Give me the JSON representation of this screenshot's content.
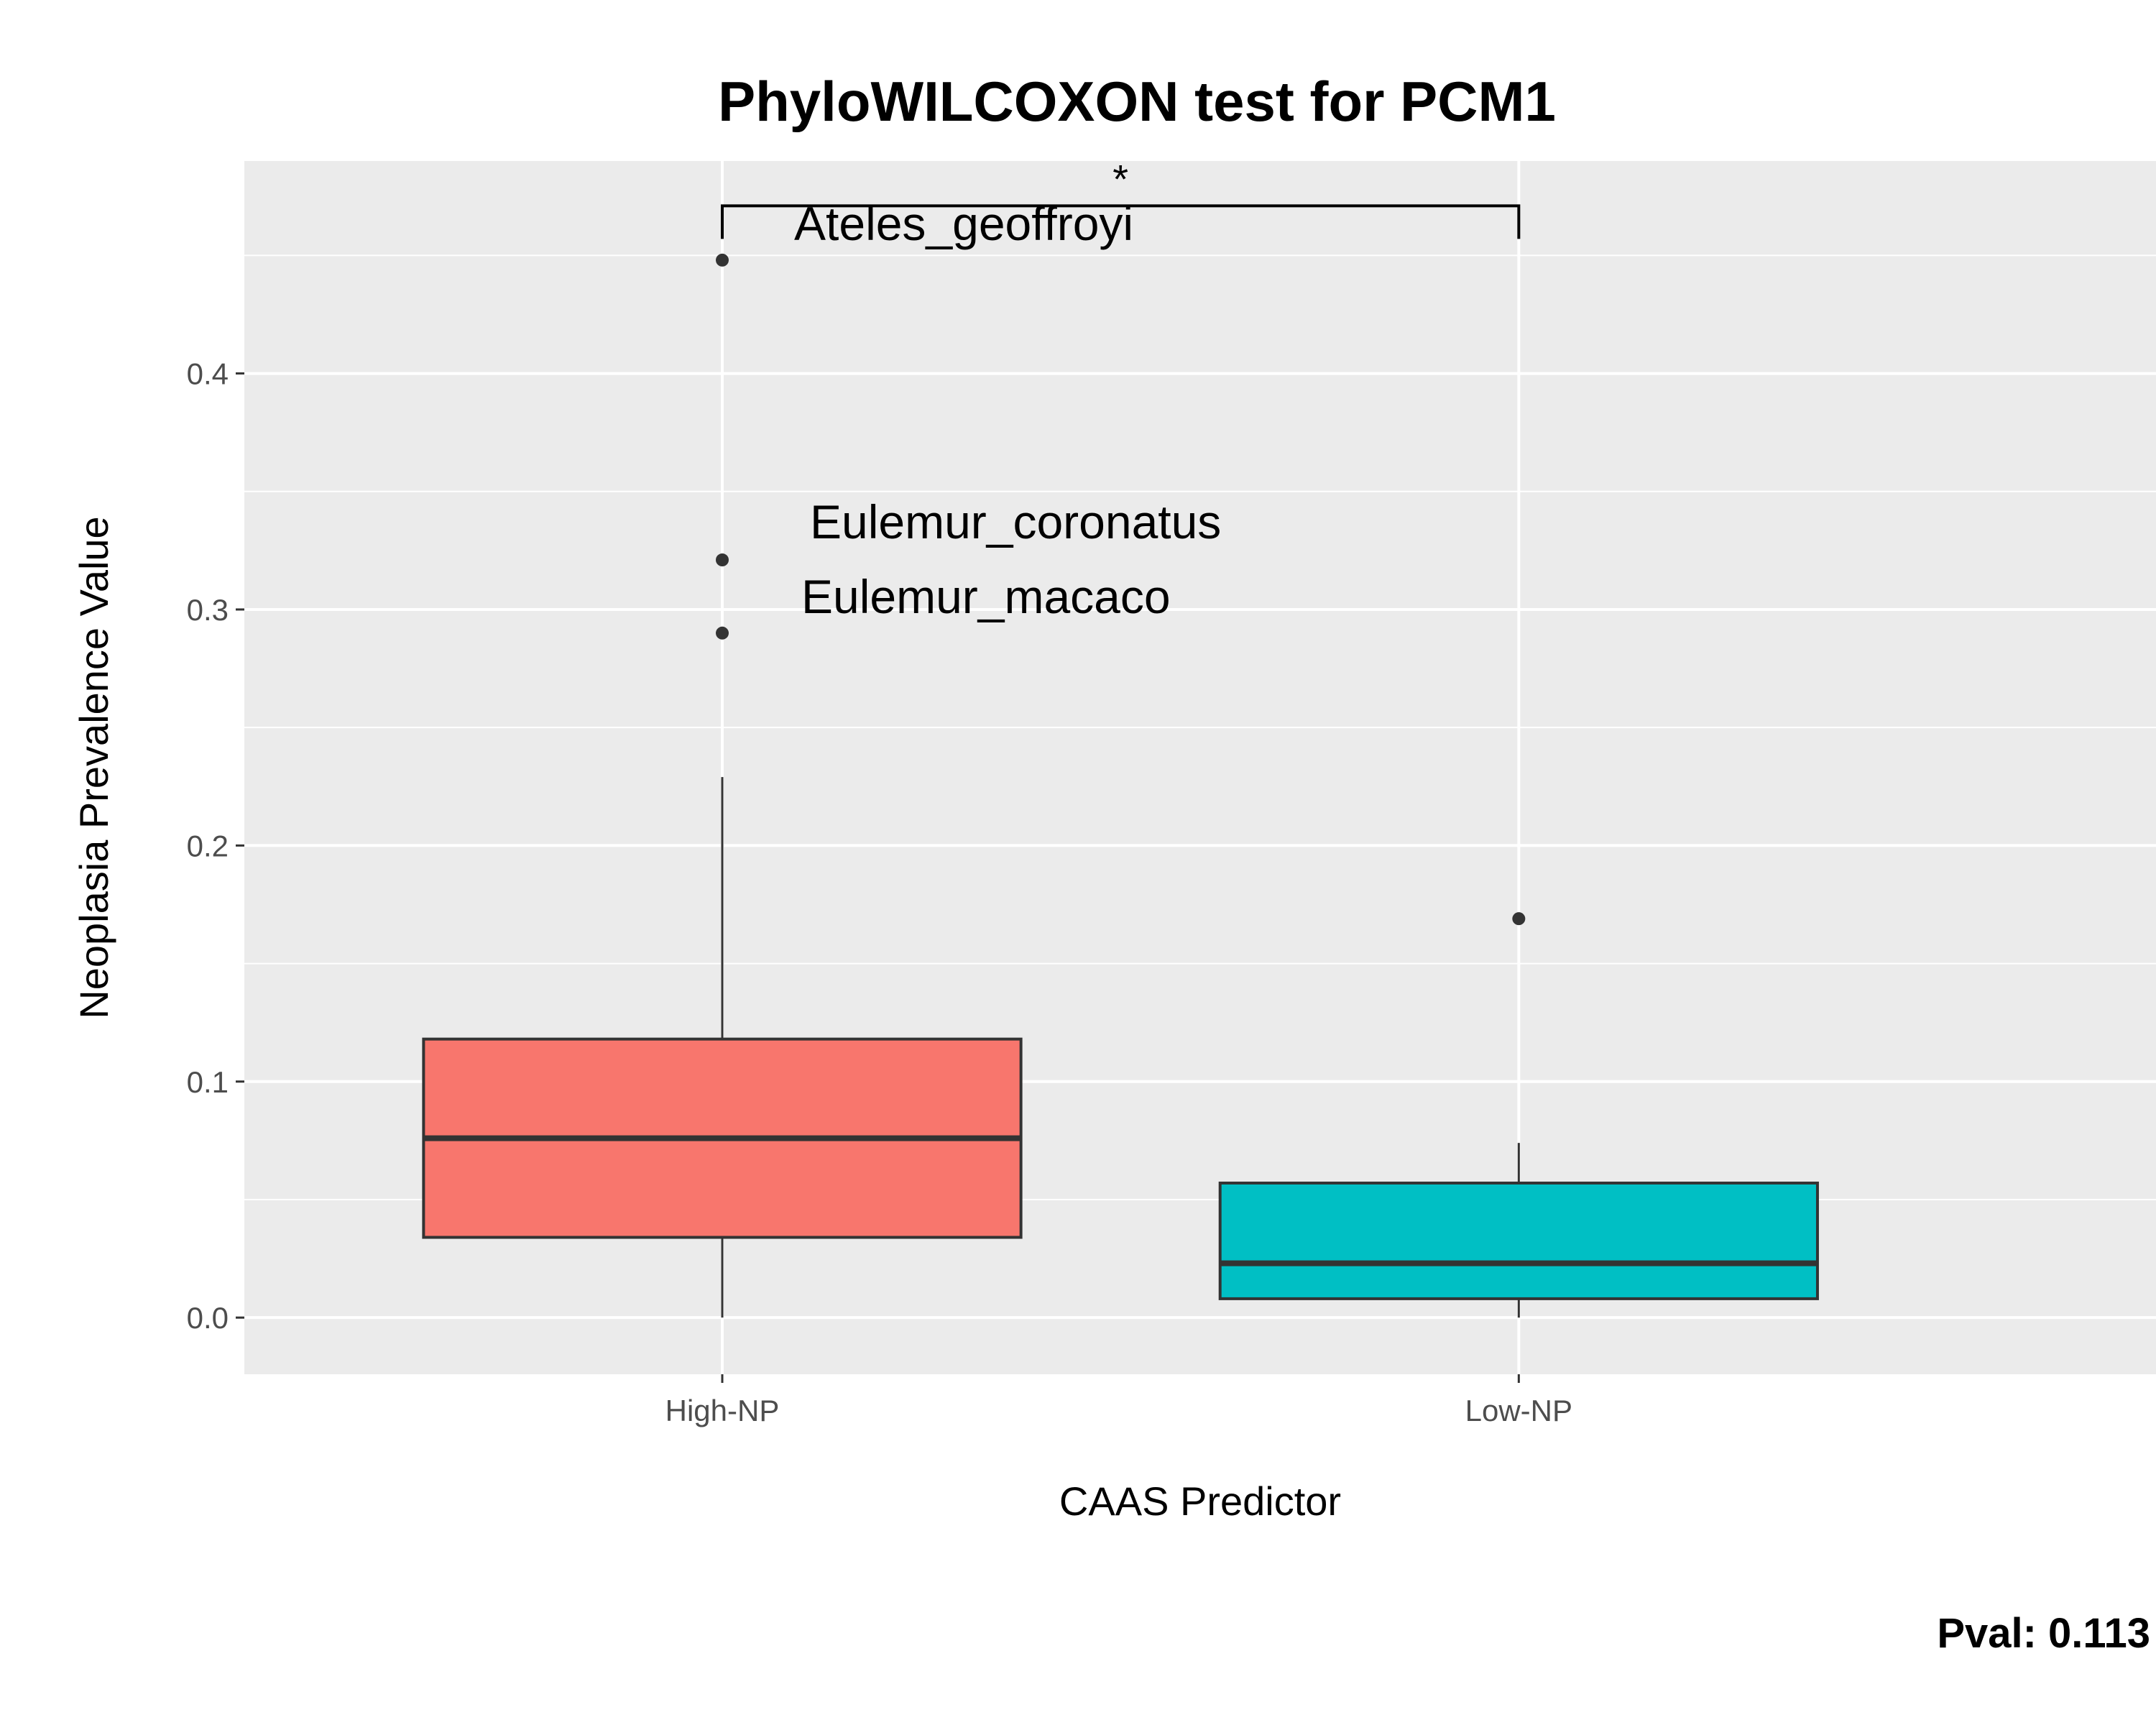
{
  "chart_data": {
    "type": "box",
    "title": "PhyloWILCOXON test for PCM1",
    "xlabel": "CAAS Predictor",
    "ylabel": "Neoplasia Prevalence Value",
    "ylim": [
      -0.024,
      0.49
    ],
    "yticks": [
      0.0,
      0.1,
      0.2,
      0.3,
      0.4
    ],
    "ytick_labels": [
      "0.0",
      "0.1",
      "0.2",
      "0.3",
      "0.4"
    ],
    "grid": true,
    "legend": "none",
    "categories": [
      "High-NP",
      "Low-NP"
    ],
    "boxes": [
      {
        "category": "High-NP",
        "color": "#F8766D",
        "whisker_low": 0.0,
        "q1": 0.034,
        "median": 0.076,
        "q3": 0.118,
        "whisker_high": 0.229,
        "outliers": [
          0.448,
          0.321,
          0.29
        ]
      },
      {
        "category": "Low-NP",
        "color": "#00BFC4",
        "whisker_low": 0.0,
        "q1": 0.008,
        "median": 0.023,
        "q3": 0.057,
        "whisker_high": 0.074,
        "outliers": [
          0.169
        ]
      }
    ],
    "annotations": [
      {
        "text": "Ateles_geoffroyi",
        "category": "High-NP",
        "y": 0.448
      },
      {
        "text": "Eulemur_coronatus",
        "category": "High-NP",
        "y": 0.321
      },
      {
        "text": "Eulemur_macaco",
        "category": "High-NP",
        "y": 0.29
      }
    ],
    "significance": {
      "label": "*",
      "from": "High-NP",
      "to": "Low-NP",
      "y": 0.471
    },
    "pvalue_text": "Pval:  0.113"
  }
}
